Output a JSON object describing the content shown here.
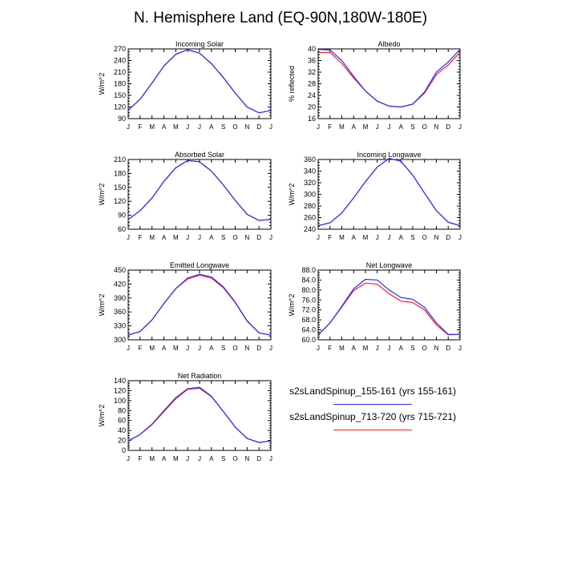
{
  "page": {
    "title": "N. Hemisphere Land (EQ-90N,180W-180E)"
  },
  "colors": {
    "series_a": "#2b2bff",
    "series_b": "#ff2020",
    "axis": "#000000"
  },
  "legend": {
    "items": [
      {
        "label": "s2sLandSpinup_155-161 (yrs 155-161)",
        "color": "#2b2bff"
      },
      {
        "label": "s2sLandSpinup_713-720 (yrs 715-721)",
        "color": "#ff2020"
      }
    ]
  },
  "chart_data": [
    {
      "type": "line",
      "title": "Incoming Solar",
      "ylabel": "W/m^2",
      "categories": [
        "J",
        "F",
        "M",
        "A",
        "M",
        "J",
        "J",
        "A",
        "S",
        "O",
        "N",
        "D",
        "J"
      ],
      "ylim": [
        90,
        270
      ],
      "yticks": [
        90,
        120,
        150,
        180,
        210,
        240,
        270
      ],
      "ytick_labels": [
        "90",
        "120",
        "150",
        "180",
        "210",
        "240",
        "270"
      ],
      "series": [
        {
          "values": [
            112,
            140,
            182,
            226,
            256,
            268,
            259,
            232,
            196,
            156,
            120,
            105,
            111
          ]
        },
        {
          "values": [
            112,
            140,
            182,
            226,
            256,
            268,
            259,
            232,
            196,
            156,
            120,
            105,
            111
          ]
        }
      ]
    },
    {
      "type": "line",
      "title": "Albedo",
      "ylabel": "% reflected",
      "categories": [
        "J",
        "F",
        "M",
        "A",
        "M",
        "J",
        "J",
        "A",
        "S",
        "O",
        "N",
        "D",
        "J"
      ],
      "ylim": [
        16,
        40
      ],
      "yticks": [
        16,
        20,
        24,
        28,
        32,
        36,
        40
      ],
      "ytick_labels": [
        "16",
        "20",
        "24",
        "28",
        "32",
        "36",
        "40"
      ],
      "series": [
        {
          "values": [
            39.8,
            39.6,
            36.0,
            30.5,
            25.5,
            22.0,
            20.3,
            20.0,
            21.0,
            25.2,
            32.0,
            35.5,
            39.8
          ]
        },
        {
          "values": [
            38.8,
            38.8,
            35.0,
            30.0,
            25.5,
            22.0,
            20.3,
            20.0,
            21.0,
            24.8,
            31.2,
            34.5,
            38.8
          ]
        }
      ]
    },
    {
      "type": "line",
      "title": "Absorbed Solar",
      "ylabel": "W/m^2",
      "categories": [
        "J",
        "F",
        "M",
        "A",
        "M",
        "J",
        "J",
        "A",
        "S",
        "O",
        "N",
        "D",
        "J"
      ],
      "ylim": [
        60,
        210
      ],
      "yticks": [
        60,
        90,
        120,
        150,
        180,
        210
      ],
      "ytick_labels": [
        "60",
        "90",
        "120",
        "150",
        "180",
        "210"
      ],
      "series": [
        {
          "values": [
            81,
            100,
            127,
            163,
            192,
            208,
            205,
            185,
            155,
            122,
            92,
            79,
            81
          ]
        },
        {
          "values": [
            81,
            100,
            127,
            163,
            192,
            208,
            205,
            185,
            155,
            122,
            92,
            79,
            81
          ]
        }
      ]
    },
    {
      "type": "line",
      "title": "Incoming Longwave",
      "ylabel": "W/m^2",
      "categories": [
        "J",
        "F",
        "M",
        "A",
        "M",
        "J",
        "J",
        "A",
        "S",
        "O",
        "N",
        "D",
        "J"
      ],
      "ylim": [
        240,
        360
      ],
      "yticks": [
        240,
        260,
        280,
        300,
        320,
        340,
        360
      ],
      "ytick_labels": [
        "240",
        "260",
        "280",
        "300",
        "320",
        "340",
        "360"
      ],
      "series": [
        {
          "values": [
            246,
            251,
            268,
            294,
            322,
            347,
            362,
            357,
            333,
            302,
            272,
            252,
            246
          ]
        },
        {
          "values": [
            246,
            251,
            268,
            294,
            322,
            347,
            362,
            357,
            333,
            302,
            272,
            252,
            246
          ]
        }
      ]
    },
    {
      "type": "line",
      "title": "Emitted Longwave",
      "ylabel": "W/m^2",
      "categories": [
        "J",
        "F",
        "M",
        "A",
        "M",
        "J",
        "J",
        "A",
        "S",
        "O",
        "N",
        "D",
        "J"
      ],
      "ylim": [
        300,
        450
      ],
      "yticks": [
        300,
        330,
        360,
        390,
        420,
        450
      ],
      "ytick_labels": [
        "300",
        "330",
        "360",
        "390",
        "420",
        "450"
      ],
      "series": [
        {
          "values": [
            310,
            318,
            343,
            378,
            410,
            433,
            441,
            435,
            414,
            381,
            341,
            315,
            310
          ]
        },
        {
          "values": [
            310,
            318,
            343,
            378,
            410,
            431,
            439,
            433,
            412,
            380,
            340,
            315,
            310
          ]
        }
      ]
    },
    {
      "type": "line",
      "title": "Net Longwave",
      "ylabel": "W/m^2",
      "categories": [
        "J",
        "F",
        "M",
        "A",
        "M",
        "J",
        "J",
        "A",
        "S",
        "O",
        "N",
        "D",
        "J"
      ],
      "ylim": [
        60,
        88
      ],
      "yticks": [
        60,
        64,
        68,
        72,
        76,
        80,
        84,
        88
      ],
      "ytick_labels": [
        "60.0",
        "64.0",
        "68.0",
        "72.0",
        "76.0",
        "80.0",
        "84.0",
        "88.0"
      ],
      "series": [
        {
          "values": [
            62.0,
            66.8,
            73.5,
            80.5,
            84.3,
            84.0,
            80.0,
            77.0,
            76.3,
            73.0,
            66.8,
            62.2,
            62.2
          ]
        },
        {
          "values": [
            62.0,
            66.8,
            73.2,
            79.8,
            82.8,
            82.3,
            78.5,
            75.5,
            75.0,
            72.0,
            66.0,
            62.0,
            62.2
          ]
        }
      ]
    },
    {
      "type": "line",
      "title": "Net Radiation",
      "ylabel": "W/m^2",
      "categories": [
        "J",
        "F",
        "M",
        "A",
        "M",
        "J",
        "J",
        "A",
        "S",
        "O",
        "N",
        "D",
        "J"
      ],
      "ylim": [
        0,
        140
      ],
      "yticks": [
        0,
        20,
        40,
        60,
        80,
        100,
        120,
        140
      ],
      "ytick_labels": [
        "0",
        "20",
        "40",
        "60",
        "80",
        "100",
        "120",
        "140"
      ],
      "series": [
        {
          "values": [
            19,
            32,
            52,
            78,
            104,
            123,
            125,
            108,
            78,
            47,
            24,
            16,
            19
          ]
        },
        {
          "values": [
            19,
            32,
            53,
            80,
            106,
            124,
            127,
            109,
            78,
            47,
            24,
            16,
            19
          ]
        }
      ]
    }
  ]
}
